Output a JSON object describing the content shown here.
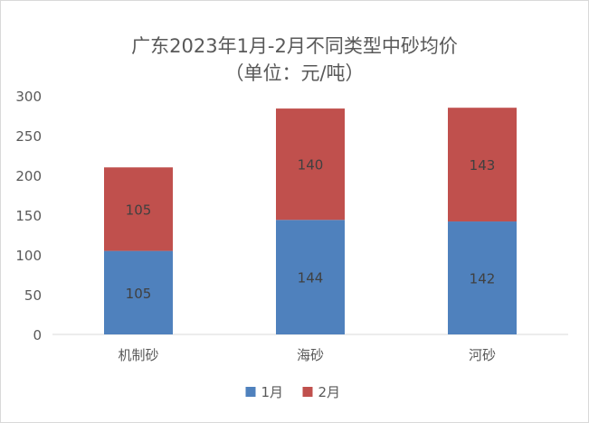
{
  "chart_data": {
    "type": "bar",
    "stacked": true,
    "title": "广东2023年1月-2月不同类型中砂均价",
    "subtitle": "（单位：元/吨）",
    "categories": [
      "机制砂",
      "海砂",
      "河砂"
    ],
    "series": [
      {
        "name": "1月",
        "values": [
          105,
          144,
          142
        ],
        "color": "#4f81bd"
      },
      {
        "name": "2月",
        "values": [
          105,
          140,
          143
        ],
        "color": "#c0504d"
      }
    ],
    "ylim": [
      0,
      300
    ],
    "yticks": [
      0,
      50,
      100,
      150,
      200,
      250,
      300
    ],
    "grid": false,
    "legend_position": "bottom"
  }
}
